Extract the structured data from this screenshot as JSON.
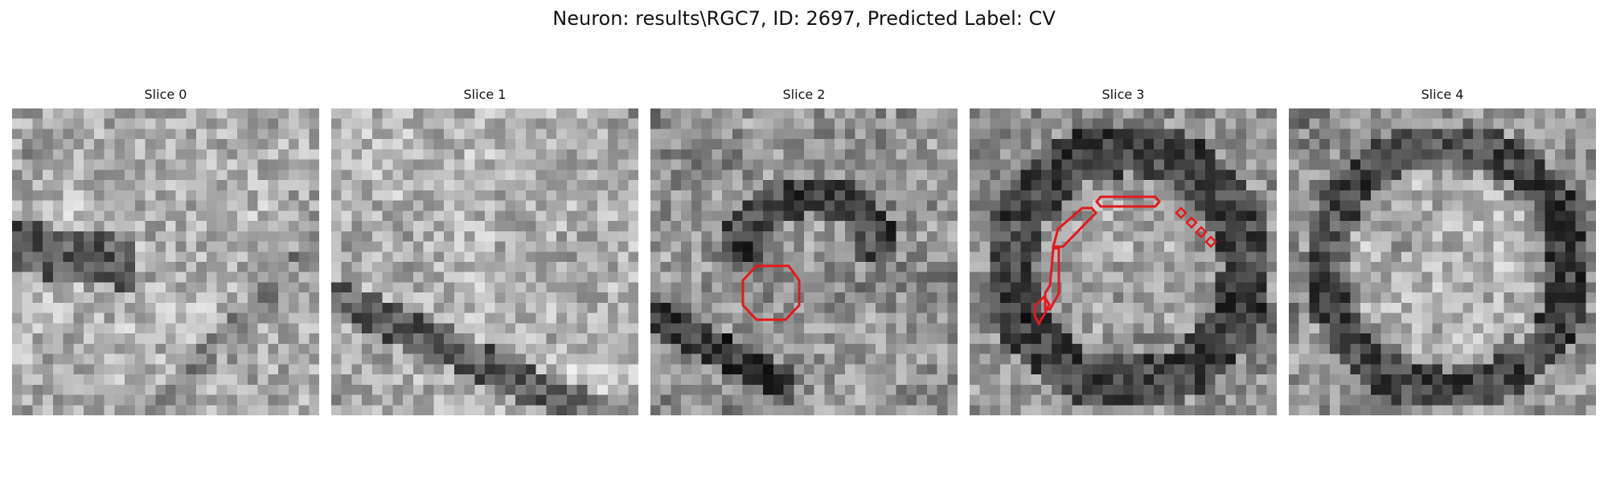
{
  "figure": {
    "title": "Neuron: results\\RGC7, ID: 2697, Predicted Label: CV"
  },
  "panels": [
    {
      "title": "Slice 0"
    },
    {
      "title": "Slice 1"
    },
    {
      "title": "Slice 2"
    },
    {
      "title": "Slice 3"
    },
    {
      "title": "Slice 4"
    }
  ],
  "overlay_color": "#e31a1c",
  "colormap": "gray"
}
